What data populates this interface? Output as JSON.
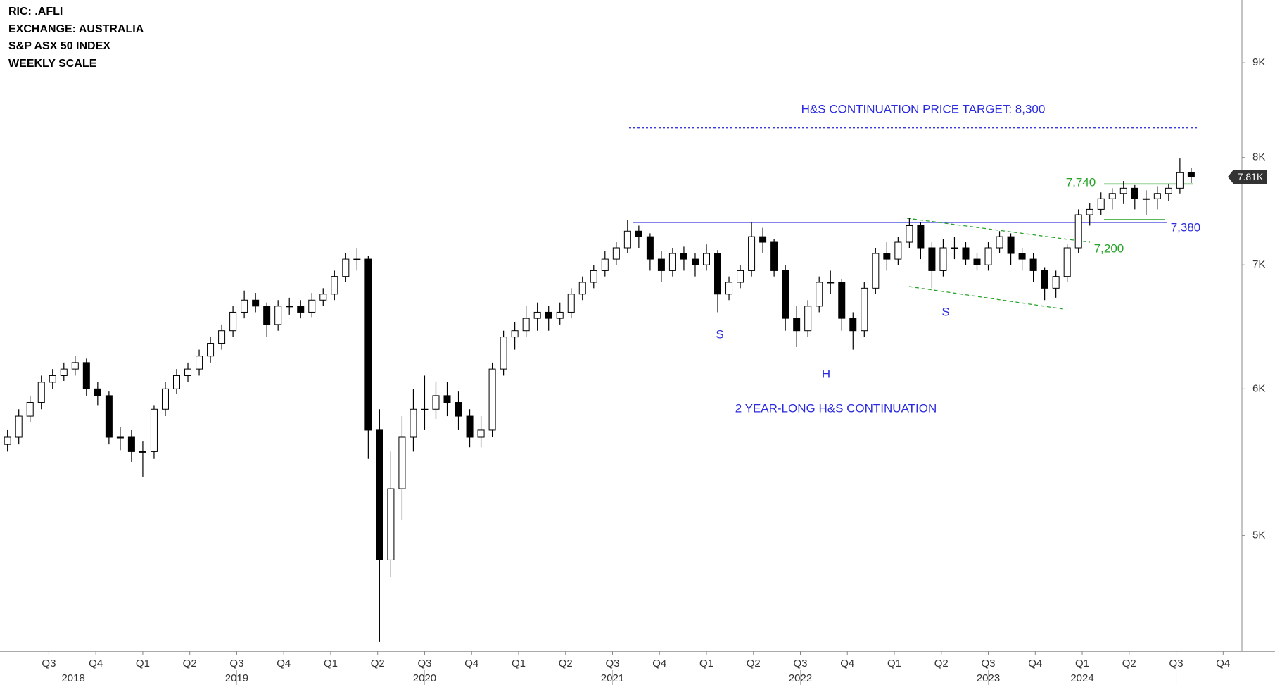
{
  "chart_data": {
    "type": "candlestick",
    "header": [
      "RIC: .AFLI",
      "EXCHANGE: AUSTRALIA",
      "S&P ASX 50 INDEX",
      "WEEKLY SCALE"
    ],
    "log_scale": true,
    "up_color": "#ffffff",
    "down_color": "#000000",
    "edge_color": "#000000",
    "x": [
      2018.28,
      2018.34,
      2018.4,
      2018.46,
      2018.52,
      2018.58,
      2018.64,
      2018.7,
      2018.76,
      2018.82,
      2018.88,
      2018.94,
      2019.0,
      2019.06,
      2019.12,
      2019.18,
      2019.24,
      2019.3,
      2019.36,
      2019.42,
      2019.48,
      2019.54,
      2019.6,
      2019.66,
      2019.72,
      2019.78,
      2019.84,
      2019.9,
      2019.96,
      2020.02,
      2020.08,
      2020.14,
      2020.2,
      2020.26,
      2020.32,
      2020.38,
      2020.44,
      2020.5,
      2020.56,
      2020.62,
      2020.68,
      2020.74,
      2020.8,
      2020.86,
      2020.92,
      2020.98,
      2021.04,
      2021.1,
      2021.16,
      2021.22,
      2021.28,
      2021.34,
      2021.4,
      2021.46,
      2021.52,
      2021.58,
      2021.64,
      2021.7,
      2021.76,
      2021.82,
      2021.88,
      2021.94,
      2022.0,
      2022.06,
      2022.12,
      2022.18,
      2022.24,
      2022.3,
      2022.36,
      2022.42,
      2022.48,
      2022.54,
      2022.6,
      2022.66,
      2022.72,
      2022.78,
      2022.84,
      2022.9,
      2022.96,
      2023.02,
      2023.08,
      2023.14,
      2023.2,
      2023.26,
      2023.32,
      2023.38,
      2023.44,
      2023.5,
      2023.56,
      2023.62,
      2023.68,
      2023.74,
      2023.8,
      2023.86,
      2023.92,
      2023.98,
      2024.04,
      2024.1,
      2024.16,
      2024.22,
      2024.28,
      2024.34,
      2024.4,
      2024.46,
      2024.52,
      2024.58
    ],
    "open": [
      5600,
      5650,
      5800,
      5900,
      6050,
      6100,
      6150,
      6200,
      6000,
      5950,
      5650,
      5650,
      5550,
      5550,
      5850,
      6000,
      6100,
      6150,
      6250,
      6350,
      6450,
      6600,
      6700,
      6650,
      6500,
      6650,
      6650,
      6600,
      6700,
      6750,
      6900,
      7050,
      7050,
      5700,
      4850,
      5300,
      5650,
      5850,
      5850,
      5950,
      5900,
      5800,
      5650,
      5700,
      6150,
      6400,
      6450,
      6550,
      6600,
      6550,
      6600,
      6750,
      6850,
      6950,
      7050,
      7150,
      7300,
      7250,
      7050,
      6950,
      7100,
      7050,
      7000,
      7100,
      6750,
      6850,
      6950,
      7250,
      7200,
      6950,
      6550,
      6450,
      6650,
      6850,
      6850,
      6550,
      6450,
      6800,
      7100,
      7050,
      7200,
      7350,
      7150,
      6950,
      7150,
      7150,
      7050,
      7000,
      7150,
      7250,
      7100,
      7050,
      6950,
      6800,
      6900,
      7150,
      7450,
      7500,
      7600,
      7650,
      7700,
      7600,
      7600,
      7650,
      7700,
      7850
    ],
    "high": [
      5700,
      5850,
      5950,
      6100,
      6150,
      6200,
      6250,
      6230,
      6050,
      5980,
      5720,
      5700,
      5620,
      5880,
      6050,
      6150,
      6200,
      6300,
      6400,
      6500,
      6650,
      6780,
      6760,
      6680,
      6700,
      6720,
      6700,
      6760,
      6800,
      6950,
      7100,
      7150,
      7080,
      5850,
      5550,
      5800,
      6000,
      6100,
      6050,
      6050,
      5980,
      5850,
      5800,
      6200,
      6450,
      6520,
      6650,
      6680,
      6650,
      6680,
      6800,
      6900,
      7000,
      7120,
      7200,
      7400,
      7350,
      7280,
      7120,
      7150,
      7160,
      7100,
      7180,
      7130,
      6900,
      7000,
      7380,
      7330,
      7230,
      7000,
      6650,
      6700,
      6900,
      6950,
      6880,
      6600,
      6850,
      7150,
      7200,
      7250,
      7420,
      7380,
      7200,
      7230,
      7250,
      7200,
      7100,
      7200,
      7300,
      7280,
      7150,
      7100,
      6980,
      6950,
      7180,
      7500,
      7560,
      7660,
      7700,
      7770,
      7730,
      7680,
      7720,
      7740,
      7990,
      7900
    ],
    "low": [
      5550,
      5600,
      5760,
      5850,
      6000,
      6060,
      6100,
      5950,
      5880,
      5600,
      5560,
      5480,
      5380,
      5500,
      5800,
      5960,
      6050,
      6100,
      6200,
      6300,
      6400,
      6550,
      6600,
      6400,
      6450,
      6580,
      6550,
      6560,
      6650,
      6700,
      6850,
      6950,
      5500,
      4380,
      4750,
      5100,
      5550,
      5700,
      5780,
      5800,
      5700,
      5580,
      5580,
      5650,
      6100,
      6300,
      6400,
      6450,
      6450,
      6500,
      6550,
      6700,
      6800,
      6900,
      7000,
      7100,
      7150,
      6950,
      6850,
      6900,
      6950,
      6900,
      6950,
      6600,
      6700,
      6800,
      6900,
      7100,
      6900,
      6450,
      6320,
      6400,
      6600,
      6750,
      6450,
      6300,
      6400,
      6750,
      6950,
      7000,
      7150,
      7050,
      6800,
      6900,
      7050,
      7000,
      6950,
      6950,
      7100,
      7000,
      6950,
      6850,
      6700,
      6720,
      6850,
      7100,
      7350,
      7450,
      7500,
      7550,
      7500,
      7450,
      7500,
      7580,
      7650,
      7750
    ],
    "close": [
      5650,
      5800,
      5900,
      6050,
      6100,
      6150,
      6200,
      6000,
      5950,
      5650,
      5650,
      5550,
      5550,
      5850,
      6000,
      6100,
      6150,
      6250,
      6350,
      6450,
      6600,
      6700,
      6650,
      6500,
      6650,
      6650,
      6600,
      6700,
      6750,
      6900,
      7050,
      7050,
      5700,
      4850,
      5300,
      5650,
      5850,
      5850,
      5950,
      5900,
      5800,
      5650,
      5700,
      6150,
      6400,
      6450,
      6550,
      6600,
      6550,
      6600,
      6750,
      6850,
      6950,
      7050,
      7150,
      7300,
      7250,
      7050,
      6950,
      7100,
      7050,
      7000,
      7100,
      6750,
      6850,
      6950,
      7250,
      7200,
      6950,
      6550,
      6450,
      6650,
      6850,
      6850,
      6550,
      6450,
      6800,
      7100,
      7050,
      7200,
      7350,
      7150,
      6950,
      7150,
      7150,
      7050,
      7000,
      7150,
      7250,
      7100,
      7050,
      6950,
      6800,
      6900,
      7150,
      7450,
      7500,
      7600,
      7650,
      7700,
      7600,
      7600,
      7650,
      7700,
      7850,
      7810
    ],
    "xlim": [
      2018.24,
      2024.85
    ],
    "ylim": [
      4330,
      9730
    ],
    "yticks": [
      {
        "value": 5000,
        "label": "5K"
      },
      {
        "value": 6000,
        "label": "6K"
      },
      {
        "value": 7000,
        "label": "7K"
      },
      {
        "value": 8000,
        "label": "8K"
      },
      {
        "value": 9000,
        "label": "9K"
      }
    ],
    "xticks": [
      {
        "value": 2018.5,
        "label": "Q3"
      },
      {
        "value": 2018.75,
        "label": "Q4"
      },
      {
        "value": 2019.0,
        "label": "Q1"
      },
      {
        "value": 2019.25,
        "label": "Q2"
      },
      {
        "value": 2019.5,
        "label": "Q3"
      },
      {
        "value": 2019.75,
        "label": "Q4"
      },
      {
        "value": 2020.0,
        "label": "Q1"
      },
      {
        "value": 2020.25,
        "label": "Q2"
      },
      {
        "value": 2020.5,
        "label": "Q3"
      },
      {
        "value": 2020.75,
        "label": "Q4"
      },
      {
        "value": 2021.0,
        "label": "Q1"
      },
      {
        "value": 2021.25,
        "label": "Q2"
      },
      {
        "value": 2021.5,
        "label": "Q3"
      },
      {
        "value": 2021.75,
        "label": "Q4"
      },
      {
        "value": 2022.0,
        "label": "Q1"
      },
      {
        "value": 2022.25,
        "label": "Q2"
      },
      {
        "value": 2022.5,
        "label": "Q3"
      },
      {
        "value": 2022.75,
        "label": "Q4"
      },
      {
        "value": 2023.0,
        "label": "Q1"
      },
      {
        "value": 2023.25,
        "label": "Q2"
      },
      {
        "value": 2023.5,
        "label": "Q3"
      },
      {
        "value": 2023.75,
        "label": "Q4"
      },
      {
        "value": 2024.0,
        "label": "Q1"
      },
      {
        "value": 2024.25,
        "label": "Q2"
      },
      {
        "value": 2024.5,
        "label": "Q3"
      },
      {
        "value": 2024.75,
        "label": "Q4"
      }
    ],
    "year_ticks": [
      {
        "value": 2018.63,
        "label": "2018"
      },
      {
        "value": 2019.5,
        "label": "2019"
      },
      {
        "value": 2020.5,
        "label": "2020"
      },
      {
        "value": 2021.5,
        "label": "2021"
      },
      {
        "value": 2022.5,
        "label": "2022"
      },
      {
        "value": 2023.5,
        "label": "2023"
      },
      {
        "value": 2024.0,
        "label": "2024"
      }
    ],
    "last_price": {
      "value": 7810,
      "label": "7.81K"
    },
    "target_text": "H&S CONTINUATION PRICE TARGET: 8,300",
    "target_level": 8300,
    "pattern_text": "2 YEAR-LONG H&S CONTINUATION",
    "left_shoulder": "S",
    "head": "H",
    "right_shoulder": "S",
    "neckline": {
      "value": 7380,
      "label": "7,380"
    },
    "resistance": {
      "value": 7740,
      "label": "7,740"
    },
    "channel_top": {
      "value": 7200,
      "label": "7,200"
    }
  }
}
